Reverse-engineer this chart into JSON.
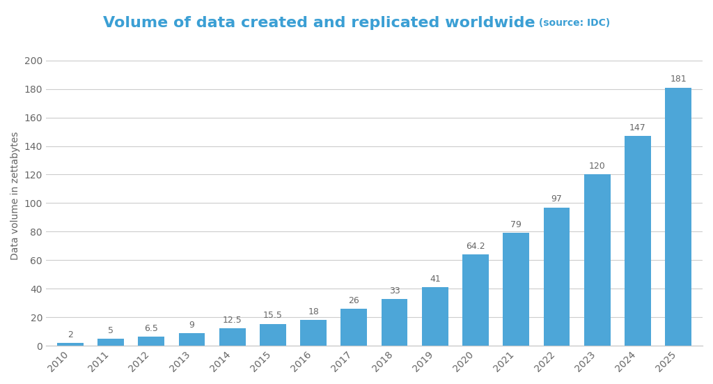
{
  "years": [
    2010,
    2011,
    2012,
    2013,
    2014,
    2015,
    2016,
    2017,
    2018,
    2019,
    2020,
    2021,
    2022,
    2023,
    2024,
    2025
  ],
  "values": [
    2,
    5,
    6.5,
    9,
    12.5,
    15.5,
    18,
    26,
    33,
    41,
    64.2,
    79,
    97,
    120,
    147,
    181
  ],
  "bar_color": "#4da6d8",
  "title_main": "Volume of data created and replicated worldwide",
  "title_source": " (source: IDC)",
  "title_main_color": "#3b9fd4",
  "ylabel": "Data volume in zettabytes",
  "ylabel_color": "#666666",
  "ylim": [
    0,
    210
  ],
  "yticks": [
    0,
    20,
    40,
    60,
    80,
    100,
    120,
    140,
    160,
    180,
    200
  ],
  "background_color": "#ffffff",
  "grid_color": "#cccccc",
  "tick_label_color": "#666666",
  "title_fontsize": 16,
  "source_fontsize": 10,
  "ylabel_fontsize": 10,
  "bar_label_fontsize": 9,
  "tick_fontsize": 10
}
